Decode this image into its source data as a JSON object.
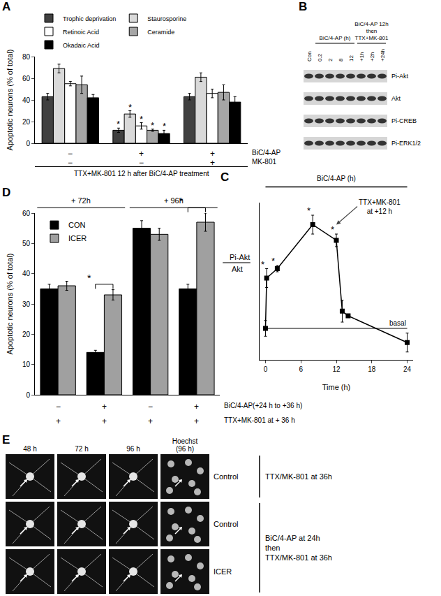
{
  "panel_labels": [
    "A",
    "B",
    "C",
    "D",
    "E"
  ],
  "chart_data": [
    {
      "panel": "A",
      "type": "bar",
      "ylabel": "Apoptotic neurons (% of total)",
      "categories": [
        null,
        null,
        null
      ],
      "row_labels": [
        {
          "label": "BiC/4-AP",
          "values": [
            "−",
            "+",
            "+"
          ]
        },
        {
          "label": "MK-801",
          "values": [
            "−",
            "−",
            "+"
          ]
        }
      ],
      "caption": "TTX+MK-801 12 h after BiC/4-AP treatment",
      "series": [
        {
          "name": "Trophic deprivation",
          "color": "#404040",
          "values": [
            43,
            12,
            43
          ],
          "errors": [
            3,
            2,
            3
          ],
          "significance": [
            null,
            "*",
            null
          ]
        },
        {
          "name": "Staurosporine",
          "color": "#d9d9d9",
          "values": [
            69,
            27,
            61
          ],
          "errors": [
            4,
            3,
            4
          ],
          "significance": [
            null,
            "*",
            null
          ]
        },
        {
          "name": "Retinoic Acid",
          "color": "#ffffff",
          "values": [
            55,
            16,
            46
          ],
          "errors": [
            2,
            3,
            4
          ],
          "significance": [
            null,
            "*",
            null
          ]
        },
        {
          "name": "Ceramide",
          "color": "#a6a6a6",
          "values": [
            54,
            12,
            47
          ],
          "errors": [
            8,
            1,
            7
          ],
          "significance": [
            null,
            "*",
            null
          ]
        },
        {
          "name": "Okadaic Acid",
          "color": "#000000",
          "values": [
            42,
            9,
            38
          ],
          "errors": [
            3,
            3,
            5
          ],
          "significance": [
            null,
            "*",
            null
          ]
        }
      ],
      "ylim": [
        0,
        80
      ],
      "yticks": [
        0,
        20,
        40,
        60,
        80
      ],
      "grid": false,
      "legend": "top",
      "tick_labels": "y"
    },
    {
      "panel": "C",
      "type": "line",
      "period_label": "BiC/4-AP (h)",
      "treatment": {
        "text": [
          "TTX+MK-801",
          "at +12 h"
        ],
        "x": 12
      },
      "basal": {
        "label": "basal",
        "value": 1
      },
      "ylabel": {
        "numerator": "Pi-Akt",
        "denominator": "Akt"
      },
      "xlabel": "Time (h)",
      "x": [
        0,
        0.2,
        2,
        8,
        12,
        13,
        14,
        24
      ],
      "values": [
        1,
        2.6,
        2.9,
        4.3,
        3.8,
        1.55,
        1.4,
        0.55
      ],
      "errors": [
        0.25,
        0.3,
        0.1,
        0.3,
        0.2,
        0.35,
        0.05,
        0.3
      ],
      "significance": [
        null,
        "*",
        "*",
        "*",
        "*",
        null,
        null,
        null
      ],
      "color": "#000000",
      "marker": "square",
      "xlim": [
        -1,
        25
      ],
      "xticks": [
        0,
        6,
        12,
        18,
        24
      ],
      "ylim": [
        0,
        5
      ],
      "yticks": [],
      "grid": false,
      "tick_labels": "x"
    },
    {
      "panel": "D",
      "type": "bar",
      "ylabel": "Apoptotic neurons (% of total)",
      "categories": [
        null,
        null,
        null,
        null
      ],
      "groups": [
        "+ 72h",
        "+ 96h"
      ],
      "row_labels": [
        {
          "label": "BiC/4-AP(+24 h to +36 h)",
          "values": [
            "−",
            "+",
            "−",
            "+"
          ]
        },
        {
          "label": "TTX+MK-801 at + 36 h",
          "values": [
            "+",
            "+",
            "+",
            "+"
          ]
        }
      ],
      "series": [
        {
          "name": "CON",
          "color": "#000000",
          "values": [
            35,
            14,
            55,
            35
          ],
          "errors": [
            1.5,
            0.7,
            2.5,
            1.5
          ]
        },
        {
          "name": "ICER",
          "color": "#a0a0a0",
          "values": [
            36,
            33,
            53,
            57
          ],
          "errors": [
            1.5,
            1.7,
            2,
            3
          ]
        }
      ],
      "significance": [
        null,
        "*",
        null,
        "*"
      ],
      "ylim": [
        0,
        60
      ],
      "yticks": [
        0,
        10,
        20,
        30,
        40,
        50,
        60
      ],
      "grid": false,
      "legend": "top left",
      "tick_labels": "y"
    }
  ],
  "blot": {
    "lanes": [
      "Con",
      "0.2",
      "2",
      "8",
      "12",
      "+1h",
      "+2h",
      "+24h"
    ],
    "lane_groups": [
      {
        "label": [
          "BiC/4-AP (h)"
        ],
        "lanes": [
          "0.2",
          "2",
          "8",
          "12"
        ]
      },
      {
        "label": [
          "BiC/4-AP 12h",
          "then",
          "TTX+MK-801"
        ],
        "lanes": [
          "+1h",
          "+2h",
          "+24h"
        ]
      }
    ],
    "rows": [
      "Pi-Akt",
      "Akt",
      "Pi-CREB",
      "Pi-ERK1/2"
    ]
  },
  "micrographs": {
    "columns": [
      [
        "48 h"
      ],
      [
        "72 h"
      ],
      [
        "96 h"
      ],
      [
        "Hoechst",
        "(96 h)"
      ]
    ],
    "rows": [
      "Control",
      "Control",
      "ICER"
    ],
    "conditions": [
      {
        "lines": [
          "TTX/MK-801 at 36h"
        ],
        "rows": [
          0
        ]
      },
      {
        "lines": [
          "BiC/4-AP at 24h",
          "then",
          "TTX/MK-801 at 36h"
        ],
        "rows": [
          1,
          2
        ]
      }
    ]
  }
}
